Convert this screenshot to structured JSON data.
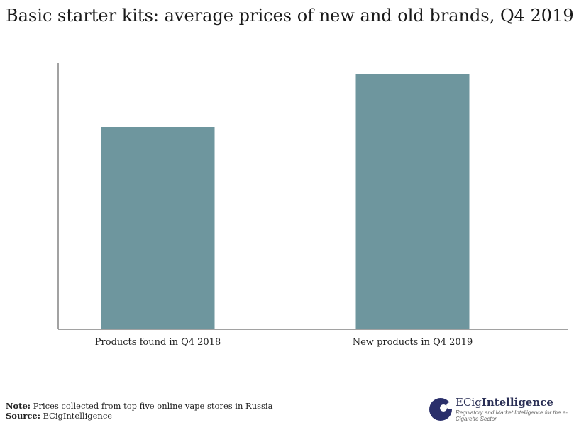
{
  "chart_data": {
    "type": "bar",
    "title": "Basic starter kits: average prices of new and old brands, Q4 2019",
    "categories": [
      "Products found in Q4 2018",
      "New products in Q4 2019"
    ],
    "values": [
      76,
      96
    ],
    "ylim": [
      0,
      100
    ],
    "xlabel": "",
    "ylabel": "",
    "grid": false,
    "bar_color": "#6e969e"
  },
  "notes": {
    "note_label": "Note:",
    "note_text": " Prices collected from top five online vape stores in Russia",
    "source_label": "Source:",
    "source_text": " ECigIntelligence"
  },
  "logo": {
    "name_part1": "ECig",
    "name_part2": "Intelligence",
    "tagline": "Regulatory and Market Intelligence for the e-Cigarette Sector"
  }
}
